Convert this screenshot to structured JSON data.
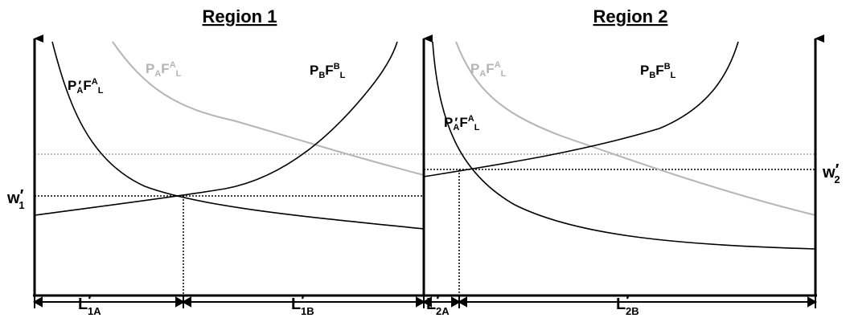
{
  "regions": [
    {
      "title": "Region 1",
      "curves": {
        "pa_prime": {
          "main": "P",
          "s1": "A",
          "prime": "′",
          "m2": "F",
          "s2": "A",
          "s3": "L"
        },
        "pa": {
          "main": "P",
          "s1": "A",
          "m2": "F",
          "s2": "A",
          "s3": "L"
        },
        "pb": {
          "main": "P",
          "s1": "B",
          "m2": "F",
          "s2": "B",
          "s3": "L"
        }
      },
      "wage": {
        "main": "w",
        "prime": "′",
        "sub": "1"
      },
      "spans": [
        {
          "main": "L",
          "prime": "′",
          "sub": "1A"
        },
        {
          "main": "L",
          "prime": "′",
          "sub": "1B"
        }
      ]
    },
    {
      "title": "Region 2",
      "curves": {
        "pa_prime": {
          "main": "P",
          "s1": "A",
          "prime": "′",
          "m2": "F",
          "s2": "A",
          "s3": "L"
        },
        "pa": {
          "main": "P",
          "s1": "A",
          "m2": "F",
          "s2": "A",
          "s3": "L"
        },
        "pb": {
          "main": "P",
          "s1": "B",
          "m2": "F",
          "s2": "B",
          "s3": "L"
        }
      },
      "wage": {
        "main": "w",
        "prime": "′",
        "sub": "2"
      },
      "spans": [
        {
          "main": "L",
          "prime": "′",
          "sub": "2A"
        },
        {
          "main": "L",
          "prime": "′",
          "sub": "2B"
        }
      ]
    }
  ],
  "colors": {
    "ink": "#000000",
    "grey_curve": "#b5b5b5",
    "grey_dotted": "#a8a8a8"
  }
}
